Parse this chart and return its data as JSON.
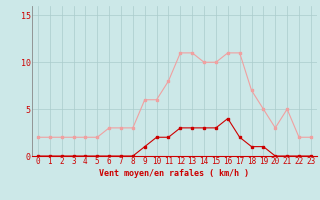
{
  "hours": [
    0,
    1,
    2,
    3,
    4,
    5,
    6,
    7,
    8,
    9,
    10,
    11,
    12,
    13,
    14,
    15,
    16,
    17,
    18,
    19,
    20,
    21,
    22,
    23
  ],
  "vent_moyen": [
    0,
    0,
    0,
    0,
    0,
    0,
    0,
    0,
    0,
    1,
    2,
    2,
    3,
    3,
    3,
    3,
    4,
    2,
    1,
    1,
    0,
    0,
    0,
    0
  ],
  "rafales": [
    2,
    2,
    2,
    2,
    2,
    2,
    3,
    3,
    3,
    6,
    6,
    8,
    11,
    11,
    10,
    10,
    11,
    11,
    7,
    5,
    3,
    5,
    2,
    2
  ],
  "color_moyen": "#cc0000",
  "color_rafales": "#f0a0a0",
  "bg_color": "#cce8e8",
  "grid_color": "#aacccc",
  "xlabel": "Vent moyen/en rafales ( km/h )",
  "ylim": [
    0,
    16
  ],
  "xlim": [
    -0.5,
    23.5
  ],
  "yticks": [
    0,
    5,
    10,
    15
  ],
  "xticks": [
    0,
    1,
    2,
    3,
    4,
    5,
    6,
    7,
    8,
    9,
    10,
    11,
    12,
    13,
    14,
    15,
    16,
    17,
    18,
    19,
    20,
    21,
    22,
    23
  ],
  "tick_fontsize": 5.5,
  "xlabel_fontsize": 6.0,
  "marker_size": 2.0,
  "line_width": 0.8
}
